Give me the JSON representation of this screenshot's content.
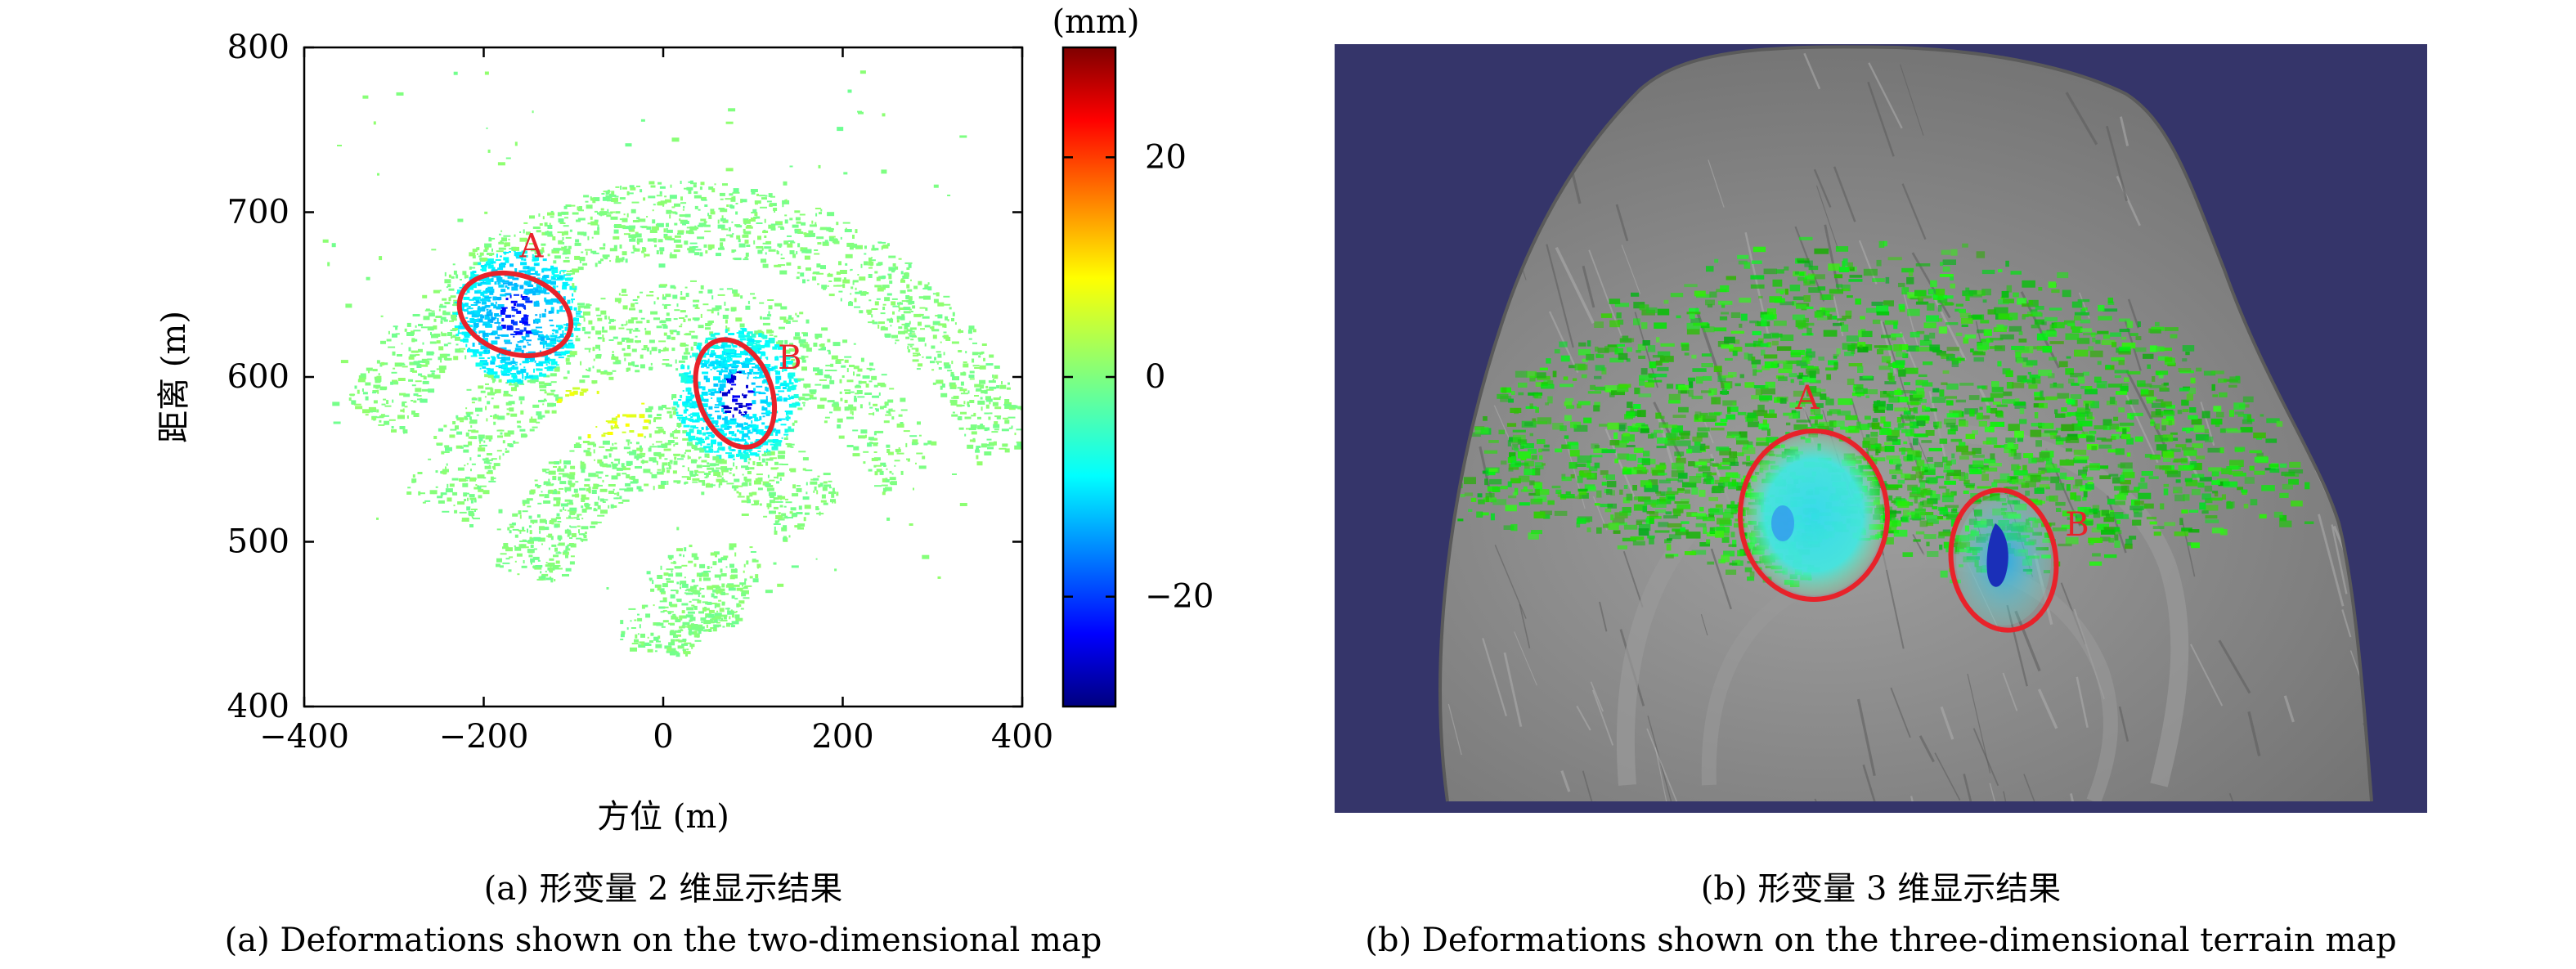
{
  "chart_data": [
    {
      "type": "scatter",
      "subtype": "deformation-map-2d",
      "xlabel": "方位 (m)",
      "ylabel": "距离 (m)",
      "xlim": [
        -400,
        400
      ],
      "ylim": [
        400,
        800
      ],
      "xticks": [
        "−400",
        "−200",
        "0",
        "200",
        "400"
      ],
      "yticks": [
        "400",
        "500",
        "600",
        "700",
        "800"
      ],
      "grid": false,
      "colorbar": {
        "unit": "(mm)",
        "range": [
          -30,
          30
        ],
        "ticks": [
          "20",
          "0",
          "−20"
        ],
        "colormap": "jet"
      },
      "regions": [
        {
          "label": "A",
          "center_x": -165,
          "center_y": 638,
          "deformation_mm": -12,
          "min_mm": -23,
          "color": "#e8222a"
        },
        {
          "label": "B",
          "center_x": 80,
          "center_y": 590,
          "deformation_mm": -10,
          "min_mm": -27,
          "color": "#e8222a"
        }
      ],
      "background_deformation_mm": 0,
      "caption_cn": "(a) 形变量 2 维显示结果",
      "caption_en": "(a) Deformations shown on the two-dimensional map"
    },
    {
      "type": "other",
      "subtype": "deformation-map-3d-terrain",
      "background_color": "#35356a",
      "terrain_color": "#8a8a8a",
      "regions": [
        {
          "label": "A",
          "color": "#e8222a"
        },
        {
          "label": "B",
          "color": "#e8222a"
        }
      ],
      "caption_cn": "(b) 形变量 3 维显示结果",
      "caption_en": "(b) Deformations shown on the three-dimensional terrain map"
    }
  ]
}
